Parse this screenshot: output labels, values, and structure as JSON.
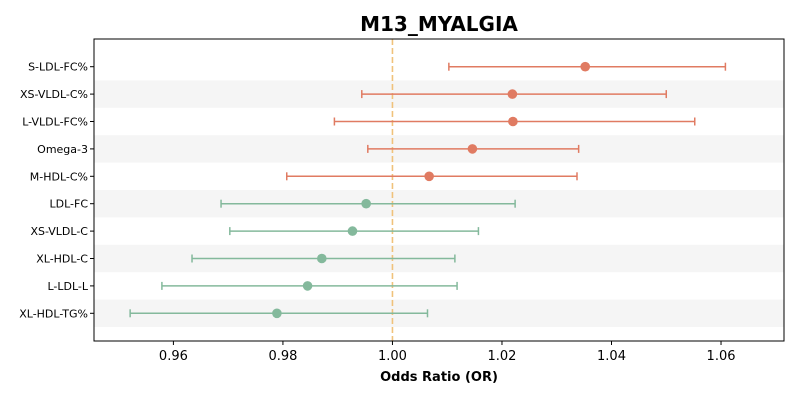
{
  "chart_data": {
    "type": "scatter",
    "title": "M13_MYALGIA",
    "xlabel": "Odds Ratio (OR)",
    "ylabel": "",
    "xlim": [
      0.9455,
      1.0715
    ],
    "xticks": [
      0.96,
      0.98,
      1.0,
      1.02,
      1.04,
      1.06
    ],
    "xtick_labels": [
      "0.96",
      "0.98",
      "1.00",
      "1.02",
      "1.04",
      "1.06"
    ],
    "reference_line": 1.0,
    "grid": false,
    "alternating_row_bands": true,
    "colors": {
      "positive": "#e07b62",
      "negative": "#84b99c",
      "reference": "#f0c27b",
      "band": "#f5f5f5"
    },
    "rows": [
      {
        "label": "S-LDL-FC%",
        "or": 1.0352,
        "lo": 1.0103,
        "hi": 1.0608,
        "direction": "positive"
      },
      {
        "label": "XS-VLDL-C%",
        "or": 1.0219,
        "lo": 0.9944,
        "hi": 1.05,
        "direction": "positive"
      },
      {
        "label": "L-VLDL-FC%",
        "or": 1.022,
        "lo": 0.9894,
        "hi": 1.0552,
        "direction": "positive"
      },
      {
        "label": "Omega-3",
        "or": 1.0146,
        "lo": 0.9955,
        "hi": 1.034,
        "direction": "positive"
      },
      {
        "label": "M-HDL-C%",
        "or": 1.0067,
        "lo": 0.9807,
        "hi": 1.0337,
        "direction": "positive"
      },
      {
        "label": "LDL-FC",
        "or": 0.9952,
        "lo": 0.9687,
        "hi": 1.0224,
        "direction": "negative"
      },
      {
        "label": "XS-VLDL-C",
        "or": 0.9927,
        "lo": 0.9703,
        "hi": 1.0157,
        "direction": "negative"
      },
      {
        "label": "XL-HDL-C",
        "or": 0.9871,
        "lo": 0.9634,
        "hi": 1.0114,
        "direction": "negative"
      },
      {
        "label": "L-LDL-L",
        "or": 0.9845,
        "lo": 0.9579,
        "hi": 1.0118,
        "direction": "negative"
      },
      {
        "label": "XL-HDL-TG%",
        "or": 0.9789,
        "lo": 0.9521,
        "hi": 1.0064,
        "direction": "negative"
      }
    ]
  }
}
